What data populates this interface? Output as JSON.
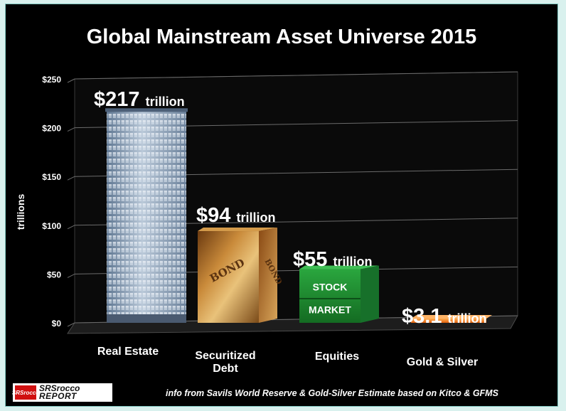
{
  "chart_data": {
    "type": "bar",
    "title": "Global Mainstream Asset Universe 2015",
    "ylabel": "trillions",
    "xlabel": "",
    "ylim": [
      0,
      250
    ],
    "yticks": [
      {
        "value": 0,
        "label": "$0"
      },
      {
        "value": 50,
        "label": "$50"
      },
      {
        "value": 100,
        "label": "$100"
      },
      {
        "value": 150,
        "label": "$150"
      },
      {
        "value": 200,
        "label": "$200"
      },
      {
        "value": 250,
        "label": "$250"
      }
    ],
    "grid": true,
    "categories": [
      {
        "line1": "Real Estate",
        "line2": ""
      },
      {
        "line1": "Securitized",
        "line2": "Debt"
      },
      {
        "line1": "Equities",
        "line2": ""
      },
      {
        "line1": "Gold & Silver",
        "line2": ""
      }
    ],
    "values": [
      217,
      94,
      55,
      3.1
    ],
    "data_labels": [
      {
        "amount": "$217",
        "unit": "trillion"
      },
      {
        "amount": "$94",
        "unit": "trillion"
      },
      {
        "amount": "$55",
        "unit": "trillion"
      },
      {
        "amount": "$3.1",
        "unit": "trillion"
      }
    ],
    "bar_styles": [
      "building",
      "bond",
      "stock-market",
      "gold"
    ],
    "colors": {
      "background": "#000000",
      "frame": "#d9f1ee",
      "text": "#ffffff",
      "building": "#8fa6bf",
      "bond": "#b86a1e",
      "stock": "#1f8a2e",
      "gold": "#f07a18"
    }
  },
  "stock_text": {
    "word1": "STOCK",
    "word2": "MARKET"
  },
  "bond_text": "BOND",
  "logo": {
    "badge": "SRSrocco",
    "line1": "SRSrocco",
    "line2": "REPORT"
  },
  "source_note": "info from Savils World Reserve & Gold-Silver Estimate based on Kitco & GFMS"
}
